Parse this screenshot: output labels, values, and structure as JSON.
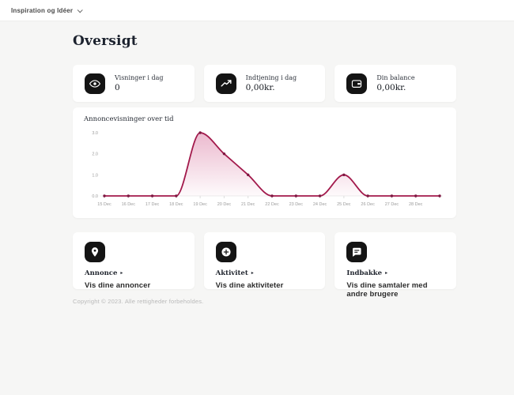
{
  "topbar": {
    "menu_label": "Inspiration og Idéer"
  },
  "page": {
    "title": "Oversigt",
    "footer": "Copyright © 2023. Alle rettigheder forbeholdes."
  },
  "stats": [
    {
      "icon": "eye-icon",
      "label": "Visninger i dag",
      "value": "0"
    },
    {
      "icon": "trending-up-icon",
      "label": "Indtjening i dag",
      "value": "0,00kr."
    },
    {
      "icon": "wallet-icon",
      "label": "Din balance",
      "value": "0,00kr."
    }
  ],
  "chart_data": {
    "type": "area",
    "title": "Annoncevisninger over tid",
    "categories": [
      "15 Dec",
      "16 Dec",
      "17 Dec",
      "18 Dec",
      "19 Dec",
      "20 Dec",
      "21 Dec",
      "22 Dec",
      "23 Dec",
      "24 Dec",
      "25 Dec",
      "26 Dec",
      "27 Dec",
      "28 Dec"
    ],
    "values": [
      0,
      0,
      0,
      0,
      3,
      2,
      1,
      0,
      0,
      0,
      1,
      0,
      0,
      0,
      0
    ],
    "unlabeled_trailing_point": true,
    "ylim": [
      0,
      3
    ],
    "y_ticks": [
      {
        "v": 3,
        "label": "3.0"
      },
      {
        "v": 2,
        "label": "2.0"
      },
      {
        "v": 1,
        "label": "1.0"
      },
      {
        "v": 0,
        "label": "0.0"
      }
    ],
    "grid": false,
    "legend": "none",
    "line_color": "#a2194b",
    "dot_color": "#7d1740",
    "fill_top": "rgba(190,24,93,0.30)",
    "fill_bottom": "rgba(190,24,93,0.02)",
    "axis_color": "#ececec",
    "tick_color": "#dddddd",
    "label_color": "#9a9a9a"
  },
  "actions": [
    {
      "icon": "map-pin-icon",
      "title": "Annonce",
      "subtitle": "Vis dine annoncer"
    },
    {
      "icon": "plus-circle-icon",
      "title": "Aktivitet",
      "subtitle": "Vis dine aktiviteter"
    },
    {
      "icon": "chat-icon",
      "title": "Indbakke",
      "subtitle": "Vis dine samtaler med andre brugere"
    }
  ],
  "icons": {
    "chevron_right": "▸"
  }
}
